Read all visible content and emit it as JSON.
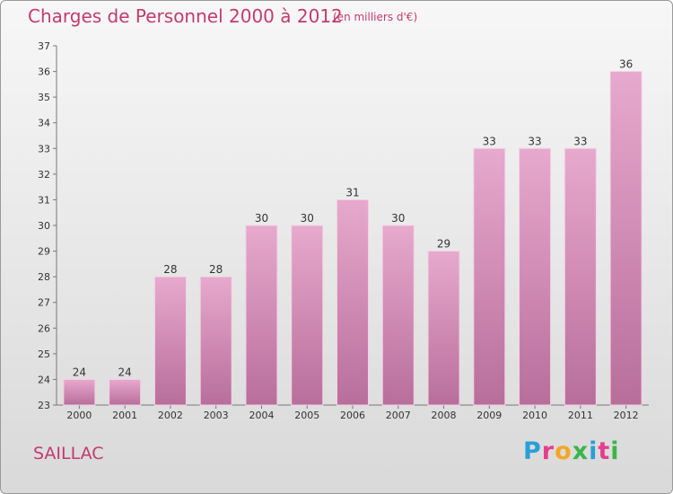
{
  "header": {
    "title": "Charges de Personnel 2000 à 2012",
    "subtitle": "(en milliers d'€)"
  },
  "footer": {
    "town": "SAILLAC",
    "logo_letters": [
      "P",
      "r",
      "o",
      "x",
      "i",
      "t",
      "i"
    ],
    "logo_colors": [
      "#2a9fd6",
      "#e63e8c",
      "#f5a623",
      "#3bb54a",
      "#2a9fd6",
      "#e63e8c",
      "#3bb54a"
    ]
  },
  "colors": {
    "accent": "#c23b6e",
    "bar_top": "#e7a9cd",
    "bar_bottom": "#b86e9b"
  },
  "chart_data": {
    "type": "bar",
    "categories": [
      "2000",
      "2001",
      "2002",
      "2003",
      "2004",
      "2005",
      "2006",
      "2007",
      "2008",
      "2009",
      "2010",
      "2011",
      "2012"
    ],
    "values": [
      24,
      24,
      28,
      28,
      30,
      30,
      31,
      30,
      29,
      33,
      33,
      33,
      36
    ],
    "ylim": [
      23,
      37
    ],
    "yticks": [
      23,
      24,
      25,
      26,
      27,
      28,
      29,
      30,
      31,
      32,
      33,
      34,
      35,
      36,
      37
    ],
    "grid": false,
    "data_labels": true
  }
}
